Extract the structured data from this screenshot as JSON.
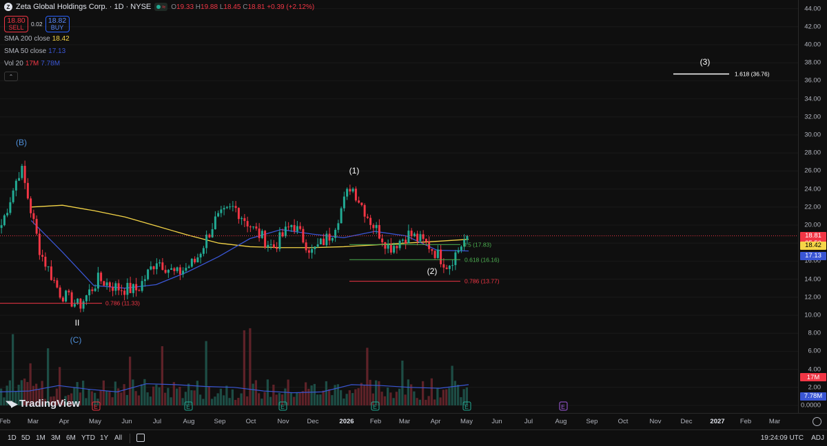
{
  "header": {
    "symbol_title": "Zeta Global Holdings Corp. · 1D · NYSE",
    "status_approx": "≈",
    "ohlc": [
      {
        "k": "O",
        "v": "19.33"
      },
      {
        "k": "H",
        "v": "19.88"
      },
      {
        "k": "L",
        "v": "18.45"
      },
      {
        "k": "C",
        "v": "18.81"
      }
    ],
    "change": "+0.39 (+2.12%)"
  },
  "trade": {
    "sell_price": "18.80",
    "sell_label": "SELL",
    "spread": "0.02",
    "buy_price": "18.82",
    "buy_label": "BUY"
  },
  "indicators": [
    {
      "name": "SMA 200 close",
      "value": "18.42"
    },
    {
      "name": "SMA 50 close",
      "value": "17.13"
    },
    {
      "name": "Vol 20",
      "value": "17M",
      "value2": "7.78M"
    }
  ],
  "price_axis": {
    "ticks": [
      "44.00",
      "42.00",
      "40.00",
      "38.00",
      "36.00",
      "34.00",
      "32.00",
      "30.00",
      "28.00",
      "26.00",
      "24.00",
      "22.00",
      "20.00",
      "18.00",
      "16.00",
      "14.00",
      "12.00",
      "10.00",
      "8.00",
      "6.00",
      "4.00",
      "2.00",
      "0.0000"
    ],
    "badges": {
      "last": "18.81",
      "countdown": "35:50",
      "sma200": "18.42",
      "sma50": "17.13",
      "vol": "17M",
      "vol_ma": "7.78M"
    }
  },
  "time_axis": {
    "labels": [
      {
        "t": "Feb"
      },
      {
        "t": "Mar"
      },
      {
        "t": "Apr"
      },
      {
        "t": "May"
      },
      {
        "t": "Jun"
      },
      {
        "t": "Jul"
      },
      {
        "t": "Aug"
      },
      {
        "t": "Sep"
      },
      {
        "t": "Oct"
      },
      {
        "t": "Nov"
      },
      {
        "t": "Dec"
      },
      {
        "t": "2026",
        "bold": true
      },
      {
        "t": "Feb"
      },
      {
        "t": "Mar"
      },
      {
        "t": "Apr"
      },
      {
        "t": "May"
      },
      {
        "t": "Jun"
      },
      {
        "t": "Jul"
      },
      {
        "t": "Aug"
      },
      {
        "t": "Sep"
      },
      {
        "t": "Oct"
      },
      {
        "t": "Nov"
      },
      {
        "t": "Dec"
      },
      {
        "t": "2027",
        "bold": true
      },
      {
        "t": "Feb"
      },
      {
        "t": "Mar"
      }
    ]
  },
  "annotations": {
    "wave_b": "(B)",
    "wave_c": "(C)",
    "wave_ii": "II",
    "wave_1": "(1)",
    "wave_2": "(2)",
    "wave_3": "(3)",
    "fib_1618": "1.618 (36.76)",
    "fib_0786_left": "0.786 (11.33)",
    "fib_05": "0.5 (17.83)",
    "fib_0618": "0.618 (16.16)",
    "fib_0786_right": "0.786 (13.77)"
  },
  "watermark": "TradingView",
  "toolbar": {
    "ranges": [
      "1D",
      "5D",
      "1M",
      "3M",
      "6M",
      "YTD",
      "1Y",
      "All"
    ],
    "clock": "19:24:09 UTC",
    "adj": "ADJ"
  },
  "colors": {
    "up": "#22ab94",
    "down": "#f23645",
    "sma200": "#f5d547",
    "sma50": "#3a56d4",
    "fib_green": "#4caf50",
    "fib_red": "#f23645",
    "background": "#0f0f0f"
  },
  "chart_data": {
    "type": "candlestick",
    "title": "Zeta Global Holdings Corp. · 1D · NYSE",
    "ylim": [
      0,
      45
    ],
    "last_close": 18.81,
    "x": [
      "Feb",
      "Mar",
      "Apr",
      "May",
      "Jun",
      "Jul",
      "Aug",
      "Sep",
      "Oct",
      "Nov",
      "Dec",
      "2026",
      "Feb",
      "Mar",
      "Apr",
      "May"
    ],
    "series": [
      {
        "name": "SMA 200 close",
        "values": [
          null,
          22.0,
          22.2,
          21.6,
          20.9,
          19.9,
          18.9,
          18.0,
          17.6,
          17.5,
          17.5,
          17.6,
          17.8,
          18.0,
          18.2,
          18.42
        ]
      },
      {
        "name": "SMA 50 close",
        "values": [
          null,
          20.5,
          17.0,
          13.3,
          13.0,
          13.4,
          14.8,
          16.5,
          18.5,
          19.5,
          19.0,
          18.6,
          19.3,
          18.8,
          17.2,
          17.13
        ]
      }
    ],
    "price_path_approx": [
      20.0,
      26.5,
      17.0,
      12.5,
      11.0,
      14.0,
      13.0,
      12.8,
      16.2,
      14.5,
      16.0,
      20.5,
      22.0,
      19.5,
      17.5,
      20.2,
      17.0,
      19.0,
      24.5,
      20.5,
      17.5,
      19.0,
      17.8,
      15.5,
      18.81
    ],
    "volume_ma_approx": [
      1.5,
      1.6,
      2.2,
      1.8,
      1.5,
      2.4,
      2.3,
      2.1,
      2.0,
      1.6,
      1.4,
      1.5,
      2.3,
      2.2,
      2.0,
      1.9,
      2.3
    ]
  }
}
